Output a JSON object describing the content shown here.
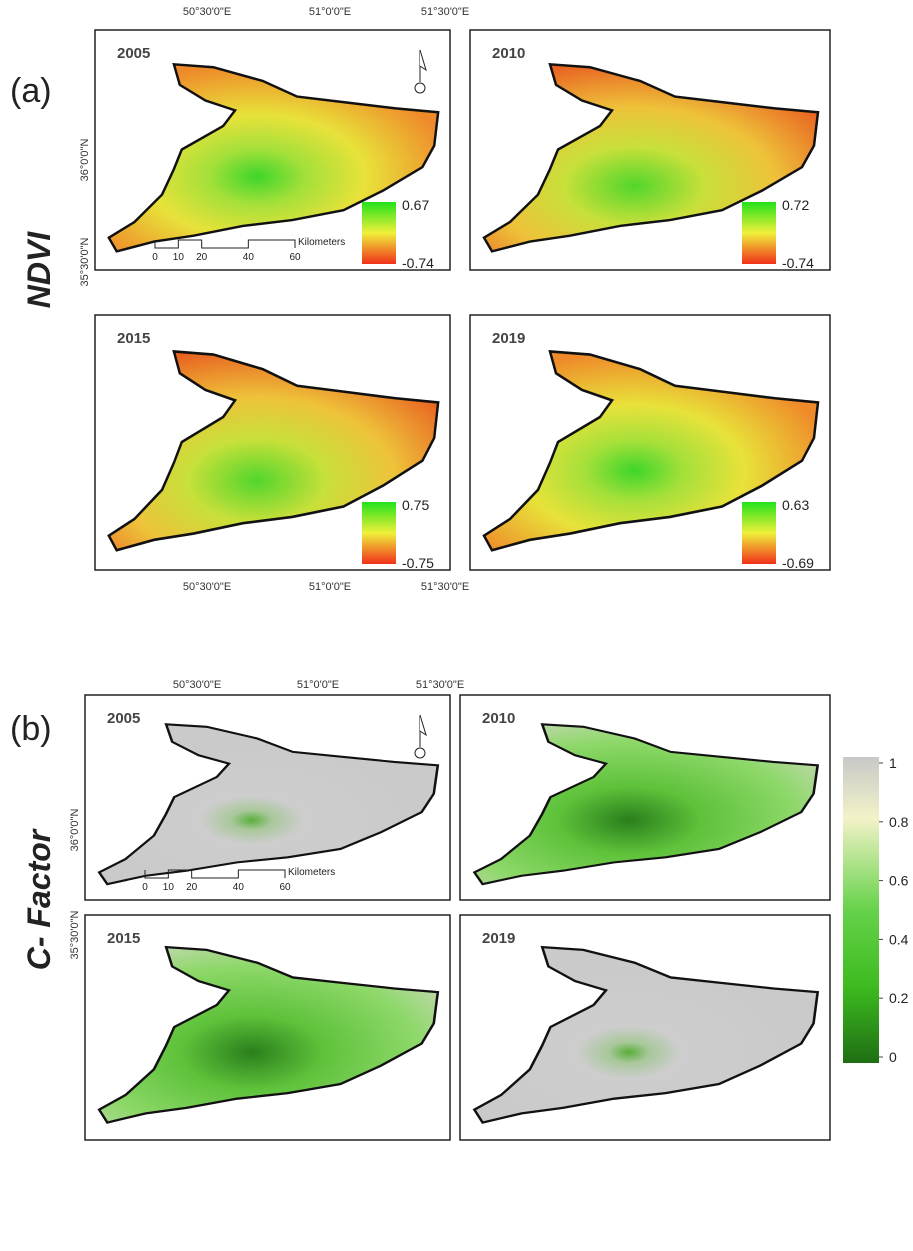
{
  "sections": [
    {
      "label": "(a)",
      "title": "NDVI",
      "top_labels": [
        "50°30'0\"E",
        "51°0'0\"E",
        "51°30'0\"E"
      ],
      "bottom_labels": [
        "50°30'0\"E",
        "51°0'0\"E",
        "51°30'0\"E"
      ],
      "left_labels": [
        "36°0'0\"N",
        "35°30'0\"N"
      ],
      "scale_bar": {
        "ticks": [
          0,
          10,
          20,
          40,
          60
        ],
        "unit": "Kilometers"
      },
      "panels": [
        {
          "year": "2005",
          "legend_max": 0.67,
          "legend_min": -0.74
        },
        {
          "year": "2010",
          "legend_max": 0.72,
          "legend_min": -0.74
        },
        {
          "year": "2015",
          "legend_max": 0.75,
          "legend_min": -0.75
        },
        {
          "year": "2019",
          "legend_max": 0.63,
          "legend_min": -0.69
        }
      ]
    },
    {
      "label": "(b)",
      "title": "C- Factor",
      "top_labels": [
        "50°30'0\"E",
        "51°0'0\"E",
        "51°30'0\"E"
      ],
      "left_labels": [
        "36°0'0\"N",
        "35°30'0\"N"
      ],
      "scale_bar": {
        "ticks": [
          0,
          10,
          20,
          40,
          60
        ],
        "unit": "Kilometers"
      },
      "panels": [
        {
          "year": "2005"
        },
        {
          "year": "2010"
        },
        {
          "year": "2015"
        },
        {
          "year": "2019"
        }
      ],
      "colorbar": {
        "ticks": [
          1,
          0.8,
          0.6,
          0.4,
          0.2,
          0
        ]
      }
    }
  ]
}
